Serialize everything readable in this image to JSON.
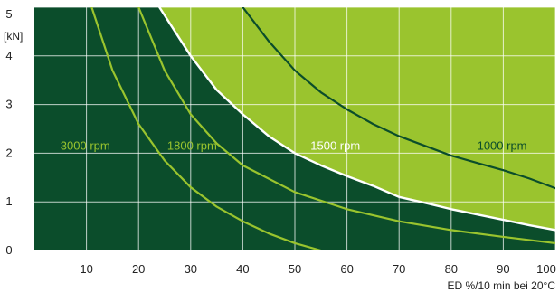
{
  "chart_data": {
    "type": "line",
    "title": "",
    "xlabel": "ED %/10 min bei 20°C",
    "ylabel": "[kN]",
    "xlim": [
      0,
      100
    ],
    "ylim": [
      0,
      5
    ],
    "x_ticks": [
      10,
      20,
      30,
      40,
      50,
      60,
      70,
      80,
      90,
      100
    ],
    "y_ticks": [
      0,
      1,
      2,
      3,
      4,
      5
    ],
    "grid": true,
    "colors": {
      "plot_background": "#0b4d2b",
      "region_fill": "#9ac42e",
      "grid": "#ffffff",
      "boundary": "#ffffff",
      "light_curve": "#9ac42e",
      "dark_curve": "#0b4d2b",
      "white_label": "#ffffff"
    },
    "boundary": {
      "name": "1500 rpm",
      "x": [
        24,
        30,
        35,
        40,
        45,
        50,
        55,
        60,
        65,
        70,
        75,
        80,
        85,
        90,
        95,
        100
      ],
      "y": [
        5.0,
        4.0,
        3.3,
        2.8,
        2.35,
        2.0,
        1.75,
        1.53,
        1.33,
        1.1,
        0.98,
        0.85,
        0.74,
        0.63,
        0.52,
        0.42
      ]
    },
    "series": [
      {
        "name": "3000 rpm",
        "color": "#9ac42e",
        "x": [
          11,
          15,
          20,
          25,
          30,
          35,
          40,
          45,
          50,
          55
        ],
        "y": [
          5.0,
          3.7,
          2.6,
          1.85,
          1.3,
          0.9,
          0.6,
          0.35,
          0.15,
          0.0
        ]
      },
      {
        "name": "1800 rpm",
        "color": "#9ac42e",
        "x": [
          20,
          25,
          30,
          35,
          40,
          50,
          60,
          70,
          80,
          90,
          100
        ],
        "y": [
          5.0,
          3.7,
          2.8,
          2.2,
          1.75,
          1.2,
          0.85,
          0.6,
          0.42,
          0.28,
          0.15
        ]
      },
      {
        "name": "1000 rpm",
        "color": "#0b4d2b",
        "x": [
          40,
          45,
          50,
          55,
          60,
          65,
          70,
          75,
          80,
          85,
          90,
          95,
          100
        ],
        "y": [
          5.0,
          4.3,
          3.7,
          3.25,
          2.9,
          2.6,
          2.35,
          2.15,
          1.95,
          1.8,
          1.65,
          1.48,
          1.28
        ]
      }
    ],
    "annotations": [
      {
        "text": "3000 rpm",
        "x": 5,
        "y": 2.0,
        "color": "#9ac42e"
      },
      {
        "text": "1800 rpm",
        "x": 25.5,
        "y": 2.0,
        "color": "#9ac42e"
      },
      {
        "text": "1500 rpm",
        "x": 53,
        "y": 2.0,
        "color": "#ffffff"
      },
      {
        "text": "1000 rpm",
        "x": 85,
        "y": 2.0,
        "color": "#0b4d2b"
      }
    ]
  }
}
